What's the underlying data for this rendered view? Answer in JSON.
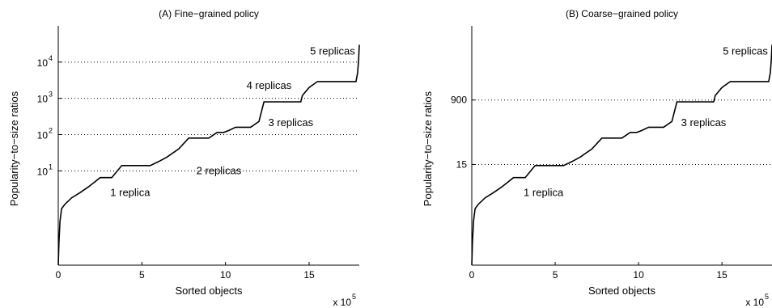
{
  "chart_data": [
    {
      "type": "line",
      "title": "(A) Fine−grained policy",
      "xlabel": "Sorted objects",
      "ylabel": "Popularity−to−size ratios",
      "x_multiplier_label": "x 10",
      "x_multiplier_exponent": "5",
      "yscale": "log",
      "xlim": [
        0,
        18
      ],
      "ylim": [
        0.025,
        100000
      ],
      "x_ticks": [
        {
          "value": 0,
          "label": "0"
        },
        {
          "value": 5,
          "label": "5"
        },
        {
          "value": 10,
          "label": "10"
        },
        {
          "value": 15,
          "label": "15"
        }
      ],
      "y_ticks": [
        {
          "value": 10,
          "base": "10",
          "exp": "1"
        },
        {
          "value": 100,
          "base": "10",
          "exp": "2"
        },
        {
          "value": 1000,
          "base": "10",
          "exp": "3"
        },
        {
          "value": 10000,
          "base": "10",
          "exp": "4"
        }
      ],
      "grid": {
        "horizontal_dotted_at": [
          10,
          100,
          1000,
          10000
        ]
      },
      "annotations": [
        {
          "text": "1 replica",
          "x": 4.3,
          "y": 2
        },
        {
          "text": "2 replicas",
          "x": 9.6,
          "y": 8
        },
        {
          "text": "3 replicas",
          "x": 13.9,
          "y": 170
        },
        {
          "text": "4 replicas",
          "x": 12.6,
          "y": 1800
        },
        {
          "text": "5 replicas",
          "x": 16.4,
          "y": 16000
        }
      ],
      "series": [
        {
          "color": "#000000",
          "points": [
            [
              0,
              0.025
            ],
            [
              0.04,
              0.1
            ],
            [
              0.1,
              0.4
            ],
            [
              0.2,
              0.9
            ],
            [
              0.4,
              1.2
            ],
            [
              0.8,
              1.8
            ],
            [
              1.3,
              2.5
            ],
            [
              1.8,
              3.6
            ],
            [
              2.2,
              5
            ],
            [
              2.5,
              6.5
            ],
            [
              3.2,
              6.5
            ],
            [
              3.8,
              14
            ],
            [
              5.5,
              14
            ],
            [
              6.0,
              18
            ],
            [
              6.5,
              24
            ],
            [
              7.2,
              40
            ],
            [
              7.8,
              80
            ],
            [
              9.0,
              80
            ],
            [
              9.5,
              115
            ],
            [
              9.9,
              115
            ],
            [
              10.2,
              130
            ],
            [
              10.6,
              160
            ],
            [
              11.5,
              160
            ],
            [
              12.0,
              230
            ],
            [
              12.3,
              800
            ],
            [
              14.5,
              800
            ],
            [
              14.6,
              1200
            ],
            [
              15.0,
              2000
            ],
            [
              15.5,
              2900
            ],
            [
              17.8,
              2900
            ],
            [
              17.9,
              5000
            ],
            [
              17.96,
              12000
            ],
            [
              18.0,
              30000
            ]
          ]
        }
      ]
    },
    {
      "type": "line",
      "title": "(B) Coarse−grained policy",
      "xlabel": "Sorted objects",
      "ylabel": "Popularity−to−size ratios",
      "x_multiplier_label": "x 10",
      "x_multiplier_exponent": "5",
      "yscale": "log",
      "xlim": [
        0,
        18
      ],
      "ylim": [
        0.025,
        100000
      ],
      "x_ticks": [
        {
          "value": 0,
          "label": "0"
        },
        {
          "value": 5,
          "label": "5"
        },
        {
          "value": 10,
          "label": "10"
        },
        {
          "value": 15,
          "label": "15"
        }
      ],
      "y_ticks": [
        {
          "value": 15,
          "label": "15"
        },
        {
          "value": 900,
          "label": "900"
        }
      ],
      "grid": {
        "horizontal_dotted_at": [
          15,
          900
        ]
      },
      "annotations": [
        {
          "text": "1 replica",
          "x": 4.3,
          "y": 2
        },
        {
          "text": "3 replicas",
          "x": 13.9,
          "y": 170
        },
        {
          "text": "5 replicas",
          "x": 16.4,
          "y": 16000
        }
      ],
      "series": [
        {
          "color": "#000000",
          "points": [
            [
              0,
              0.025
            ],
            [
              0.04,
              0.1
            ],
            [
              0.1,
              0.4
            ],
            [
              0.2,
              0.9
            ],
            [
              0.4,
              1.2
            ],
            [
              0.8,
              1.8
            ],
            [
              1.3,
              2.5
            ],
            [
              1.8,
              3.6
            ],
            [
              2.2,
              5
            ],
            [
              2.5,
              6.5
            ],
            [
              3.2,
              6.5
            ],
            [
              3.8,
              14
            ],
            [
              5.5,
              14
            ],
            [
              6.0,
              18
            ],
            [
              6.5,
              24
            ],
            [
              7.2,
              40
            ],
            [
              7.8,
              80
            ],
            [
              9.0,
              80
            ],
            [
              9.5,
              115
            ],
            [
              9.9,
              115
            ],
            [
              10.2,
              130
            ],
            [
              10.6,
              160
            ],
            [
              11.5,
              160
            ],
            [
              12.0,
              230
            ],
            [
              12.3,
              800
            ],
            [
              14.5,
              800
            ],
            [
              14.6,
              1200
            ],
            [
              15.0,
              2000
            ],
            [
              15.5,
              2900
            ],
            [
              17.8,
              2900
            ],
            [
              17.9,
              5000
            ],
            [
              17.96,
              12000
            ],
            [
              18.0,
              30000
            ]
          ]
        }
      ]
    }
  ]
}
